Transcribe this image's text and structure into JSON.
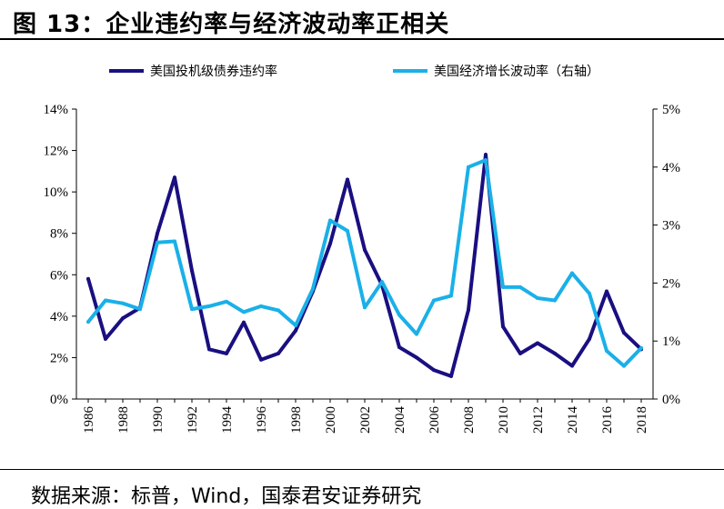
{
  "title": "图 13：企业违约率与经济波动率正相关",
  "source": "数据来源：标普，Wind，国泰君安证券研究",
  "chart_data": {
    "type": "line",
    "x": [
      1986,
      1987,
      1988,
      1989,
      1990,
      1991,
      1992,
      1993,
      1994,
      1995,
      1996,
      1997,
      1998,
      1999,
      2000,
      2001,
      2002,
      2003,
      2004,
      2005,
      2006,
      2007,
      2008,
      2009,
      2010,
      2011,
      2012,
      2013,
      2014,
      2015,
      2016,
      2017,
      2018
    ],
    "x_tick_labels": [
      "1986",
      "1988",
      "1990",
      "1992",
      "1994",
      "1996",
      "1998",
      "2000",
      "2002",
      "2004",
      "2006",
      "2008",
      "2010",
      "2012",
      "2014",
      "2016",
      "2018"
    ],
    "y_left_ticks": [
      "0%",
      "2%",
      "4%",
      "6%",
      "8%",
      "10%",
      "12%",
      "14%"
    ],
    "y_right_ticks": [
      "0%",
      "1%",
      "2%",
      "3%",
      "4%",
      "5%"
    ],
    "ylim_left": [
      0,
      14
    ],
    "ylim_right": [
      0,
      5
    ],
    "legend_position": "top",
    "grid": false,
    "series": [
      {
        "name": "美国投机级债券违约率",
        "axis": "left",
        "color": "#1a0f80",
        "values": [
          5.8,
          2.9,
          3.9,
          4.4,
          8.0,
          10.7,
          6.2,
          2.4,
          2.2,
          3.7,
          1.9,
          2.2,
          3.3,
          5.2,
          7.5,
          10.6,
          7.2,
          5.5,
          2.5,
          2.0,
          1.4,
          1.1,
          4.3,
          11.8,
          3.5,
          2.2,
          2.7,
          2.2,
          1.6,
          2.9,
          5.2,
          3.2,
          2.4
        ]
      },
      {
        "name": "美国经济增长波动率（右轴）",
        "axis": "right",
        "color": "#1ab0e8",
        "values": [
          1.33,
          1.7,
          1.65,
          1.55,
          2.7,
          2.72,
          1.55,
          1.6,
          1.68,
          1.5,
          1.6,
          1.53,
          1.27,
          1.9,
          3.08,
          2.9,
          1.58,
          2.02,
          1.45,
          1.12,
          1.7,
          1.78,
          4.0,
          4.12,
          1.93,
          1.93,
          1.74,
          1.7,
          2.17,
          1.82,
          0.83,
          0.57,
          0.88
        ]
      }
    ]
  }
}
